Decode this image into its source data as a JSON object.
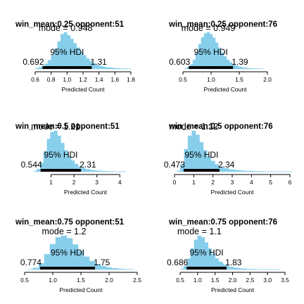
{
  "chart_data": [
    {
      "type": "area",
      "title": "win_mean:0.25  opponent:51",
      "xlabel": "Predicted Count",
      "xlim": [
        0.6,
        1.8
      ],
      "xticks": [
        0.6,
        0.8,
        1.0,
        1.2,
        1.4,
        1.6,
        1.8
      ],
      "tick_labels": [
        "0.6",
        "0.8",
        "1.0",
        "1.2",
        "1.4",
        "1.6",
        "1.8"
      ],
      "mode_label": "mode = 0.948",
      "hdi_label": "95% HDI",
      "hdi_low_label": "0.692",
      "hdi_high_label": "1.31",
      "hdi": [
        0.692,
        1.31
      ],
      "x": [
        0.62,
        0.66,
        0.7,
        0.74,
        0.78,
        0.82,
        0.86,
        0.9,
        0.94,
        0.98,
        1.02,
        1.06,
        1.1,
        1.14,
        1.18,
        1.22,
        1.26,
        1.3,
        1.34,
        1.38,
        1.42,
        1.46,
        1.5,
        1.56,
        1.62,
        1.7,
        1.78
      ],
      "y": [
        0.02,
        0.04,
        0.08,
        0.14,
        0.24,
        0.38,
        0.55,
        0.75,
        0.95,
        1.0,
        0.92,
        0.82,
        0.7,
        0.58,
        0.47,
        0.37,
        0.28,
        0.21,
        0.15,
        0.11,
        0.08,
        0.06,
        0.04,
        0.03,
        0.02,
        0.01,
        0.005
      ]
    },
    {
      "type": "area",
      "title": "win_mean:0.25  opponent:76",
      "xlabel": "Predicted Count",
      "xlim": [
        0.5,
        2.0
      ],
      "xticks": [
        0.5,
        1.0,
        1.5,
        2.0
      ],
      "tick_labels": [
        "0.5",
        "1.0",
        "1.5",
        "2.0"
      ],
      "mode_label": "mode = 0.949",
      "hdi_label": "95% HDI",
      "hdi_low_label": "0.603",
      "hdi_high_label": "1.39",
      "hdi": [
        0.603,
        1.39
      ],
      "x": [
        0.55,
        0.6,
        0.65,
        0.7,
        0.75,
        0.8,
        0.85,
        0.9,
        0.95,
        1.0,
        1.05,
        1.1,
        1.15,
        1.2,
        1.25,
        1.3,
        1.35,
        1.4,
        1.45,
        1.5,
        1.6,
        1.7,
        1.8,
        1.9
      ],
      "y": [
        0.02,
        0.05,
        0.12,
        0.25,
        0.45,
        0.68,
        0.86,
        0.97,
        1.0,
        0.95,
        0.85,
        0.72,
        0.58,
        0.45,
        0.34,
        0.25,
        0.18,
        0.13,
        0.09,
        0.06,
        0.03,
        0.015,
        0.008,
        0.004
      ]
    },
    {
      "type": "area",
      "title": "win_mean:0.5  opponent:51",
      "xlabel": "Predicted Count",
      "xlim": [
        0,
        4.3
      ],
      "xticks": [
        1,
        2,
        3,
        4
      ],
      "tick_labels": [
        "1",
        "2",
        "3",
        "4"
      ],
      "mode_label": "mode = 1.21",
      "hdi_label": "95% HDI",
      "hdi_low_label": "0.544",
      "hdi_high_label": "2.31",
      "hdi": [
        0.544,
        2.31
      ],
      "x": [
        0.3,
        0.45,
        0.6,
        0.75,
        0.9,
        1.05,
        1.2,
        1.35,
        1.5,
        1.65,
        1.8,
        1.95,
        2.1,
        2.25,
        2.4,
        2.6,
        2.8,
        3.0,
        3.3,
        3.6,
        3.9,
        4.2
      ],
      "y": [
        0.01,
        0.06,
        0.22,
        0.5,
        0.8,
        0.97,
        1.0,
        0.88,
        0.7,
        0.52,
        0.38,
        0.27,
        0.19,
        0.13,
        0.09,
        0.06,
        0.04,
        0.025,
        0.015,
        0.008,
        0.004,
        0.002
      ]
    },
    {
      "type": "area",
      "title": "win_mean:0.5  opponent:76",
      "xlabel": "Predicted Count",
      "xlim": [
        0,
        6
      ],
      "xticks": [
        0,
        1,
        2,
        3,
        4,
        5,
        6
      ],
      "tick_labels": [
        "0",
        "1",
        "2",
        "3",
        "4",
        "5",
        "6"
      ],
      "mode_label": "mode = 1.12",
      "hdi_label": "95% HDI",
      "hdi_low_label": "0.473",
      "hdi_high_label": "2.34",
      "hdi": [
        0.473,
        2.34
      ],
      "x": [
        0.2,
        0.4,
        0.6,
        0.8,
        1.0,
        1.2,
        1.4,
        1.6,
        1.8,
        2.0,
        2.2,
        2.4,
        2.7,
        3.0,
        3.4,
        3.8,
        4.3,
        4.8,
        5.4,
        6.0
      ],
      "y": [
        0.02,
        0.18,
        0.55,
        0.88,
        1.0,
        0.9,
        0.72,
        0.52,
        0.37,
        0.26,
        0.18,
        0.12,
        0.08,
        0.05,
        0.03,
        0.018,
        0.01,
        0.006,
        0.003,
        0.001
      ]
    },
    {
      "type": "area",
      "title": "win_mean:0.75  opponent:51",
      "xlabel": "Predicted Count",
      "xlim": [
        0.5,
        2.5
      ],
      "xticks": [
        0.5,
        1.0,
        1.5,
        2.0,
        2.5
      ],
      "tick_labels": [
        "0.5",
        "1.0",
        "1.5",
        "2.0",
        "2.5"
      ],
      "mode_label": "mode = 1.2",
      "hdi_label": "95% HDI",
      "hdi_low_label": "0.774",
      "hdi_high_label": "1.75",
      "hdi": [
        0.774,
        1.75
      ],
      "x": [
        0.6,
        0.7,
        0.8,
        0.9,
        1.0,
        1.1,
        1.2,
        1.3,
        1.4,
        1.5,
        1.6,
        1.7,
        1.8,
        1.9,
        2.0,
        2.1,
        2.2,
        2.3,
        2.4
      ],
      "y": [
        0.01,
        0.05,
        0.18,
        0.45,
        0.75,
        0.95,
        1.0,
        0.92,
        0.74,
        0.55,
        0.38,
        0.25,
        0.16,
        0.1,
        0.06,
        0.035,
        0.02,
        0.01,
        0.005
      ]
    },
    {
      "type": "area",
      "title": "win_mean:0.75  opponent:76",
      "xlabel": "Predicted Count",
      "xlim": [
        0.5,
        3.5
      ],
      "xticks": [
        0.5,
        1.0,
        1.5,
        2.0,
        2.5,
        3.0,
        3.5
      ],
      "tick_labels": [
        "0.5",
        "1.0",
        "1.5",
        "2.0",
        "2.5",
        "3.0",
        "3.5"
      ],
      "mode_label": "mode = 1.1",
      "hdi_label": "95% HDI",
      "hdi_low_label": "0.686",
      "hdi_high_label": "1.83",
      "hdi": [
        0.686,
        1.83
      ],
      "x": [
        0.55,
        0.65,
        0.75,
        0.85,
        0.95,
        1.05,
        1.15,
        1.25,
        1.35,
        1.45,
        1.55,
        1.65,
        1.8,
        1.95,
        2.1,
        2.3,
        2.5,
        2.75,
        3.0,
        3.3
      ],
      "y": [
        0.02,
        0.1,
        0.32,
        0.62,
        0.88,
        1.0,
        0.95,
        0.8,
        0.62,
        0.46,
        0.33,
        0.23,
        0.14,
        0.08,
        0.05,
        0.025,
        0.012,
        0.006,
        0.003,
        0.001
      ]
    }
  ],
  "colors": {
    "fill": "#87ceeb",
    "hdi_bar": "#000000",
    "axis": "#000000"
  }
}
